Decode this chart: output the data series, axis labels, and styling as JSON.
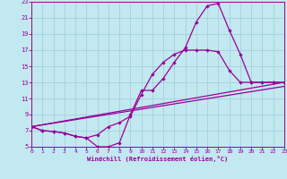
{
  "xlabel": "Windchill (Refroidissement éolien,°C)",
  "xlim": [
    0,
    23
  ],
  "ylim": [
    5,
    23
  ],
  "xticks": [
    0,
    1,
    2,
    3,
    4,
    5,
    6,
    7,
    8,
    9,
    10,
    11,
    12,
    13,
    14,
    15,
    16,
    17,
    18,
    19,
    20,
    21,
    22,
    23
  ],
  "yticks": [
    5,
    7,
    9,
    11,
    13,
    15,
    17,
    19,
    21,
    23
  ],
  "background_color": "#c2e8f0",
  "grid_color": "#a0ccd8",
  "line_color": "#990099",
  "curve1_x": [
    0,
    1,
    2,
    3,
    4,
    5,
    6,
    7,
    8,
    9,
    10,
    11,
    12,
    13,
    14,
    15,
    16,
    17,
    18,
    19,
    20,
    21,
    22,
    23
  ],
  "curve1_y": [
    7.5,
    7.0,
    6.9,
    6.7,
    6.3,
    6.1,
    5.0,
    5.0,
    5.5,
    9.0,
    12.0,
    12.0,
    13.5,
    15.5,
    17.3,
    20.5,
    22.5,
    22.8,
    19.5,
    16.5,
    13.0,
    13.0,
    13.0,
    13.0
  ],
  "curve2_x": [
    0,
    1,
    2,
    3,
    4,
    5,
    6,
    7,
    8,
    9,
    10,
    11,
    12,
    13,
    14,
    15,
    16,
    17,
    18,
    19,
    20,
    21,
    22,
    23
  ],
  "curve2_y": [
    7.5,
    7.0,
    6.9,
    6.7,
    6.3,
    6.1,
    6.5,
    7.5,
    8.0,
    8.8,
    11.5,
    14.0,
    15.5,
    16.5,
    17.0,
    17.0,
    17.0,
    16.8,
    14.5,
    13.0,
    13.0,
    13.0,
    13.0,
    13.0
  ],
  "line1_x": [
    0,
    23
  ],
  "line1_y": [
    7.5,
    13.0
  ],
  "line2_x": [
    0,
    23
  ],
  "line2_y": [
    7.5,
    12.5
  ]
}
